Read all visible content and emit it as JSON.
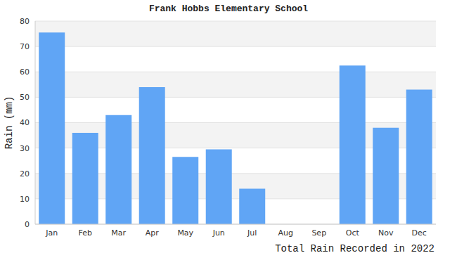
{
  "chart_data": {
    "type": "bar",
    "title": "Frank Hobbs Elementary School",
    "x_label": "Total Rain Recorded in 2022",
    "y_label": "Rain (mm)",
    "categories": [
      "Jan",
      "Feb",
      "Mar",
      "Apr",
      "May",
      "Jun",
      "Jul",
      "Aug",
      "Sep",
      "Oct",
      "Nov",
      "Dec"
    ],
    "values": [
      75.5,
      36,
      43,
      54,
      26.5,
      29.5,
      14,
      0,
      0,
      62.5,
      38,
      53
    ],
    "color": "#60a5f5",
    "ylim": [
      0,
      80
    ],
    "yticks": [
      0,
      10,
      20,
      30,
      40,
      50,
      60,
      70,
      80
    ],
    "grid": true
  }
}
